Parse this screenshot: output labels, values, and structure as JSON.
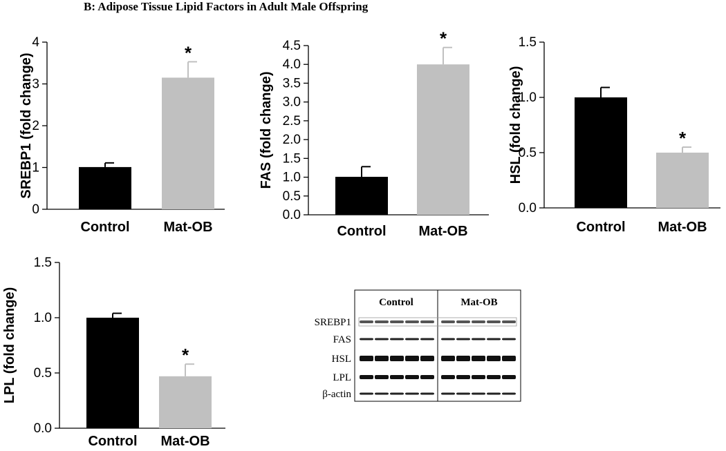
{
  "figure": {
    "title": "B:  Adipose Tissue Lipid Factors in Adult Male Offspring"
  },
  "colors": {
    "control": "#000000",
    "mat_ob": "#c0c0c0",
    "axis": "#000000"
  },
  "chart_data": [
    {
      "type": "bar",
      "categories": [
        "Control",
        "Mat-OB"
      ],
      "values": [
        1.01,
        3.15
      ],
      "errors": [
        0.1,
        0.38
      ],
      "significance": [
        "",
        "*"
      ],
      "ylabel": "SREBP1 (fold change)",
      "ylim": [
        0,
        4
      ],
      "yticks": [
        0,
        1,
        2,
        3,
        4
      ],
      "ytick_labels": [
        "0",
        "1",
        "2",
        "3",
        "4"
      ],
      "grid": false
    },
    {
      "type": "bar",
      "categories": [
        "Control",
        "Mat-OB"
      ],
      "values": [
        1.01,
        4.0
      ],
      "errors": [
        0.27,
        0.45
      ],
      "significance": [
        "",
        "*"
      ],
      "ylabel": "FAS (fold change)",
      "ylim": [
        0,
        4.5
      ],
      "yticks": [
        0,
        0.5,
        1,
        1.5,
        2,
        2.5,
        3,
        3.5,
        4,
        4.5
      ],
      "ytick_labels": [
        "0.0",
        "0.5",
        "1.0",
        "1.5",
        "2.0",
        "2.5",
        "3.0",
        "3.5",
        "4.0",
        "4.5"
      ],
      "grid": false
    },
    {
      "type": "bar",
      "categories": [
        "Control",
        "Mat-OB"
      ],
      "values": [
        1.0,
        0.5
      ],
      "errors": [
        0.09,
        0.05
      ],
      "significance": [
        "",
        "*"
      ],
      "ylabel": "HSL (fold change)",
      "ylim": [
        0,
        1.5
      ],
      "yticks": [
        0,
        0.5,
        1,
        1.5
      ],
      "ytick_labels": [
        "0.0",
        "0.5",
        "1.0",
        "1.5"
      ],
      "grid": false
    },
    {
      "type": "bar",
      "categories": [
        "Control",
        "Mat-OB"
      ],
      "values": [
        1.0,
        0.47
      ],
      "errors": [
        0.04,
        0.11
      ],
      "significance": [
        "",
        "*"
      ],
      "ylabel": "LPL (fold change)",
      "ylim": [
        0,
        1.5
      ],
      "yticks": [
        0,
        0.5,
        1,
        1.5
      ],
      "ytick_labels": [
        "0.0",
        "0.5",
        "1.0",
        "1.5"
      ],
      "grid": false
    }
  ],
  "blot": {
    "groups": [
      "Control",
      "Mat-OB"
    ],
    "rows": [
      "SREBP1",
      "FAS",
      "HSL",
      "LPL",
      "β-actin"
    ],
    "lanes_per_group": 5
  }
}
